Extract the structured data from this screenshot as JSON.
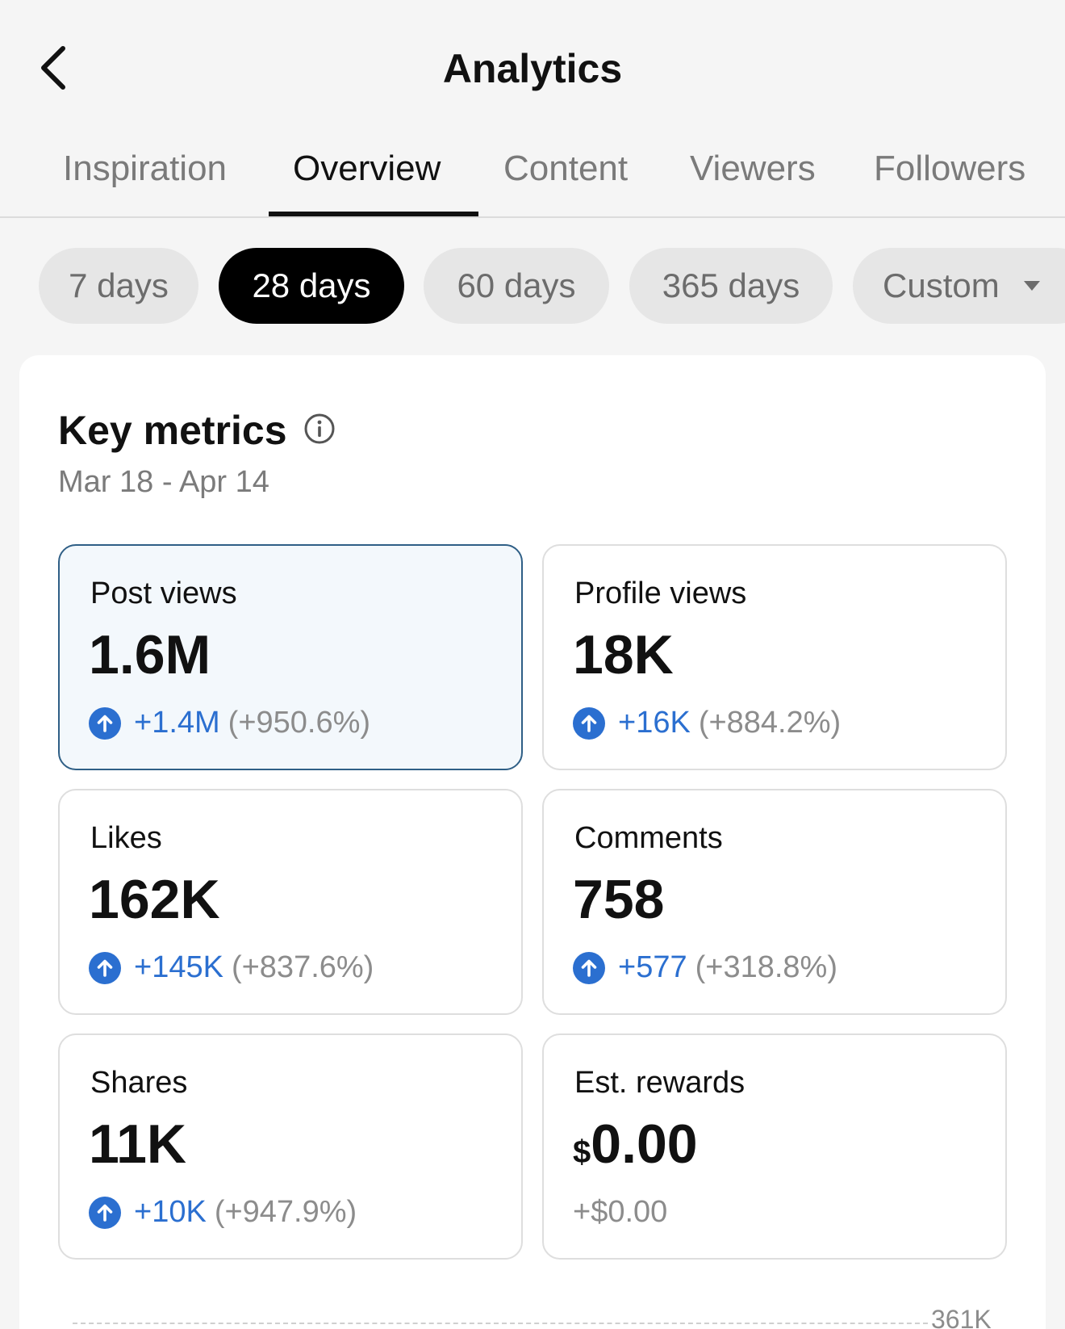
{
  "header": {
    "title": "Analytics",
    "back_icon": "chevron-left-icon"
  },
  "tabs": [
    {
      "label": "Inspiration",
      "active": false
    },
    {
      "label": "Overview",
      "active": true
    },
    {
      "label": "Content",
      "active": false
    },
    {
      "label": "Viewers",
      "active": false
    },
    {
      "label": "Followers",
      "active": false
    }
  ],
  "ranges": [
    {
      "label": "7 days",
      "active": false
    },
    {
      "label": "28 days",
      "active": true
    },
    {
      "label": "60 days",
      "active": false
    },
    {
      "label": "365 days",
      "active": false
    },
    {
      "label": "Custom",
      "active": false,
      "dropdown": true
    }
  ],
  "key_metrics": {
    "title": "Key metrics",
    "date_range": "Mar 18 - Apr 14",
    "items": [
      {
        "label": "Post views",
        "value": "1.6M",
        "delta": "+1.4M",
        "pct": "(+950.6%)",
        "selected": true
      },
      {
        "label": "Profile views",
        "value": "18K",
        "delta": "+16K",
        "pct": "(+884.2%)",
        "selected": false
      },
      {
        "label": "Likes",
        "value": "162K",
        "delta": "+145K",
        "pct": "(+837.6%)",
        "selected": false
      },
      {
        "label": "Comments",
        "value": "758",
        "delta": "+577",
        "pct": "(+318.8%)",
        "selected": false
      },
      {
        "label": "Shares",
        "value": "11K",
        "delta": "+10K",
        "pct": "(+947.9%)",
        "selected": false
      },
      {
        "label": "Est. rewards",
        "currency": "$",
        "value": "0.00",
        "change": "+$0.00",
        "selected": false
      }
    ]
  },
  "chart": {
    "max_label": "361K"
  },
  "colors": {
    "accent_blue": "#2b6fd0",
    "selected_border": "#2f5f86",
    "selected_bg": "#f3f8fc",
    "active_chip": "#000000"
  }
}
